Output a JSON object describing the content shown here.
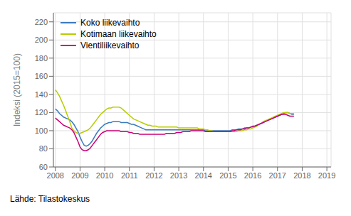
{
  "chart_data": {
    "type": "line",
    "ylabel": "Indeksi (2015=100)",
    "source": "Lähde: Tilastokeskus",
    "xlim": [
      2007.92,
      2019.17
    ],
    "xticks": [
      2008,
      2009,
      2010,
      2011,
      2012,
      2013,
      2014,
      2015,
      2016,
      2017,
      2018,
      2019
    ],
    "ylim": [
      60,
      230
    ],
    "yticks": [
      60,
      80,
      100,
      120,
      140,
      160,
      180,
      200,
      220
    ],
    "grid": true,
    "legend": "upper left",
    "x": [
      2008.0,
      2008.0833333333333,
      2008.1666666666667,
      2008.25,
      2008.3333333333333,
      2008.4166666666667,
      2008.5,
      2008.5833333333333,
      2008.6666666666667,
      2008.75,
      2008.8333333333333,
      2008.9166666666667,
      2009.0,
      2009.0833333333333,
      2009.1666666666667,
      2009.25,
      2009.3333333333333,
      2009.4166666666667,
      2009.5,
      2009.5833333333333,
      2009.6666666666667,
      2009.75,
      2009.8333333333333,
      2009.9166666666667,
      2010.0,
      2010.0833333333333,
      2010.1666666666667,
      2010.25,
      2010.3333333333333,
      2010.4166666666667,
      2010.5,
      2010.5833333333333,
      2010.6666666666667,
      2010.75,
      2010.8333333333333,
      2010.9166666666667,
      2011.0,
      2011.0833333333333,
      2011.1666666666667,
      2011.25,
      2011.3333333333333,
      2011.4166666666667,
      2011.5,
      2011.5833333333333,
      2011.6666666666667,
      2011.75,
      2011.8333333333333,
      2011.9166666666667,
      2012.0,
      2012.0833333333333,
      2012.1666666666667,
      2012.25,
      2012.3333333333333,
      2012.4166666666667,
      2012.5,
      2012.5833333333333,
      2012.6666666666667,
      2012.75,
      2012.8333333333333,
      2012.9166666666667,
      2013.0,
      2013.0833333333333,
      2013.1666666666667,
      2013.25,
      2013.3333333333333,
      2013.4166666666667,
      2013.5,
      2013.5833333333333,
      2013.6666666666667,
      2013.75,
      2013.8333333333333,
      2013.9166666666667,
      2014.0,
      2014.0833333333333,
      2014.1666666666667,
      2014.25,
      2014.3333333333333,
      2014.4166666666667,
      2014.5,
      2014.5833333333333,
      2014.6666666666667,
      2014.75,
      2014.8333333333333,
      2014.9166666666667,
      2015.0,
      2015.0833333333333,
      2015.1666666666667,
      2015.25,
      2015.3333333333333,
      2015.4166666666667,
      2015.5,
      2015.5833333333333,
      2015.6666666666667,
      2015.75,
      2015.8333333333333,
      2015.9166666666667,
      2016.0,
      2016.0833333333333,
      2016.1666666666667,
      2016.25,
      2016.3333333333333,
      2016.4166666666667,
      2016.5,
      2016.5833333333333,
      2016.6666666666667,
      2016.75,
      2016.8333333333333,
      2016.9166666666667,
      2017.0,
      2017.0833333333333,
      2017.1666666666667,
      2017.25,
      2017.3333333333333,
      2017.4166666666667,
      2017.5,
      2017.5833333333333,
      2017.6666666666667
    ],
    "series": [
      {
        "name": "Koko liikevaihto",
        "color": "#3a7abf",
        "values": [
          124,
          122,
          119,
          117,
          115,
          114,
          113,
          112,
          110,
          107,
          103,
          99,
          93,
          88,
          84,
          83,
          84,
          86,
          89,
          93,
          97,
          100,
          103,
          105,
          107,
          108,
          109,
          109,
          110,
          110,
          110,
          110,
          109,
          109,
          109,
          109,
          108,
          107,
          107,
          106,
          105,
          104,
          103,
          102,
          101,
          101,
          101,
          101,
          101,
          101,
          101,
          101,
          101,
          101,
          101,
          101,
          101,
          101,
          101,
          101,
          101,
          101,
          101,
          101,
          101,
          101,
          101,
          101,
          101,
          101,
          101,
          101,
          101,
          100,
          100,
          100,
          100,
          100,
          100,
          100,
          100,
          100,
          100,
          100,
          100,
          100,
          101,
          101,
          101,
          102,
          102,
          102,
          103,
          103,
          103,
          104,
          104,
          105,
          106,
          107,
          108,
          109,
          110,
          111,
          112,
          113,
          114,
          115,
          116,
          117,
          118,
          119,
          120,
          120,
          119,
          118,
          118
        ]
      },
      {
        "name": "Kotimaan liikevaihto",
        "color": "#b8cc00",
        "values": [
          145,
          142,
          138,
          133,
          128,
          122,
          116,
          110,
          103,
          100,
          98,
          97,
          97,
          98,
          99,
          100,
          101,
          103,
          106,
          109,
          112,
          115,
          118,
          120,
          122,
          124,
          125,
          125,
          126,
          126,
          126,
          126,
          125,
          123,
          121,
          119,
          117,
          115,
          113,
          112,
          111,
          110,
          109,
          108,
          107,
          106,
          106,
          105,
          105,
          105,
          104,
          104,
          104,
          104,
          104,
          104,
          104,
          104,
          104,
          104,
          103,
          103,
          103,
          103,
          103,
          103,
          103,
          103,
          103,
          103,
          102,
          102,
          102,
          101,
          101,
          100,
          100,
          99,
          99,
          99,
          99,
          99,
          99,
          99,
          99,
          99,
          99,
          99,
          99,
          100,
          100,
          100,
          101,
          101,
          102,
          102,
          103,
          104,
          105,
          107,
          108,
          110,
          111,
          112,
          113,
          114,
          115,
          116,
          117,
          118,
          119,
          120,
          120,
          120,
          119,
          119,
          119
        ]
      },
      {
        "name": "Vientiliikevaihto",
        "color": "#cc0077",
        "values": [
          114,
          112,
          110,
          108,
          106,
          105,
          104,
          103,
          101,
          98,
          93,
          88,
          82,
          79,
          78,
          78,
          79,
          81,
          84,
          87,
          90,
          93,
          96,
          98,
          99,
          100,
          100,
          100,
          100,
          100,
          100,
          100,
          99,
          99,
          99,
          99,
          98,
          98,
          97,
          97,
          97,
          96,
          96,
          96,
          96,
          96,
          96,
          96,
          96,
          96,
          96,
          96,
          96,
          96,
          97,
          97,
          97,
          97,
          97,
          98,
          98,
          98,
          99,
          99,
          99,
          99,
          100,
          100,
          100,
          100,
          100,
          100,
          100,
          99,
          99,
          99,
          99,
          99,
          99,
          99,
          99,
          99,
          99,
          99,
          99,
          99,
          100,
          100,
          101,
          101,
          101,
          102,
          102,
          103,
          103,
          104,
          105,
          105,
          106,
          107,
          108,
          109,
          110,
          111,
          112,
          113,
          114,
          115,
          116,
          117,
          118,
          118,
          118,
          117,
          116,
          116,
          116
        ]
      }
    ]
  }
}
